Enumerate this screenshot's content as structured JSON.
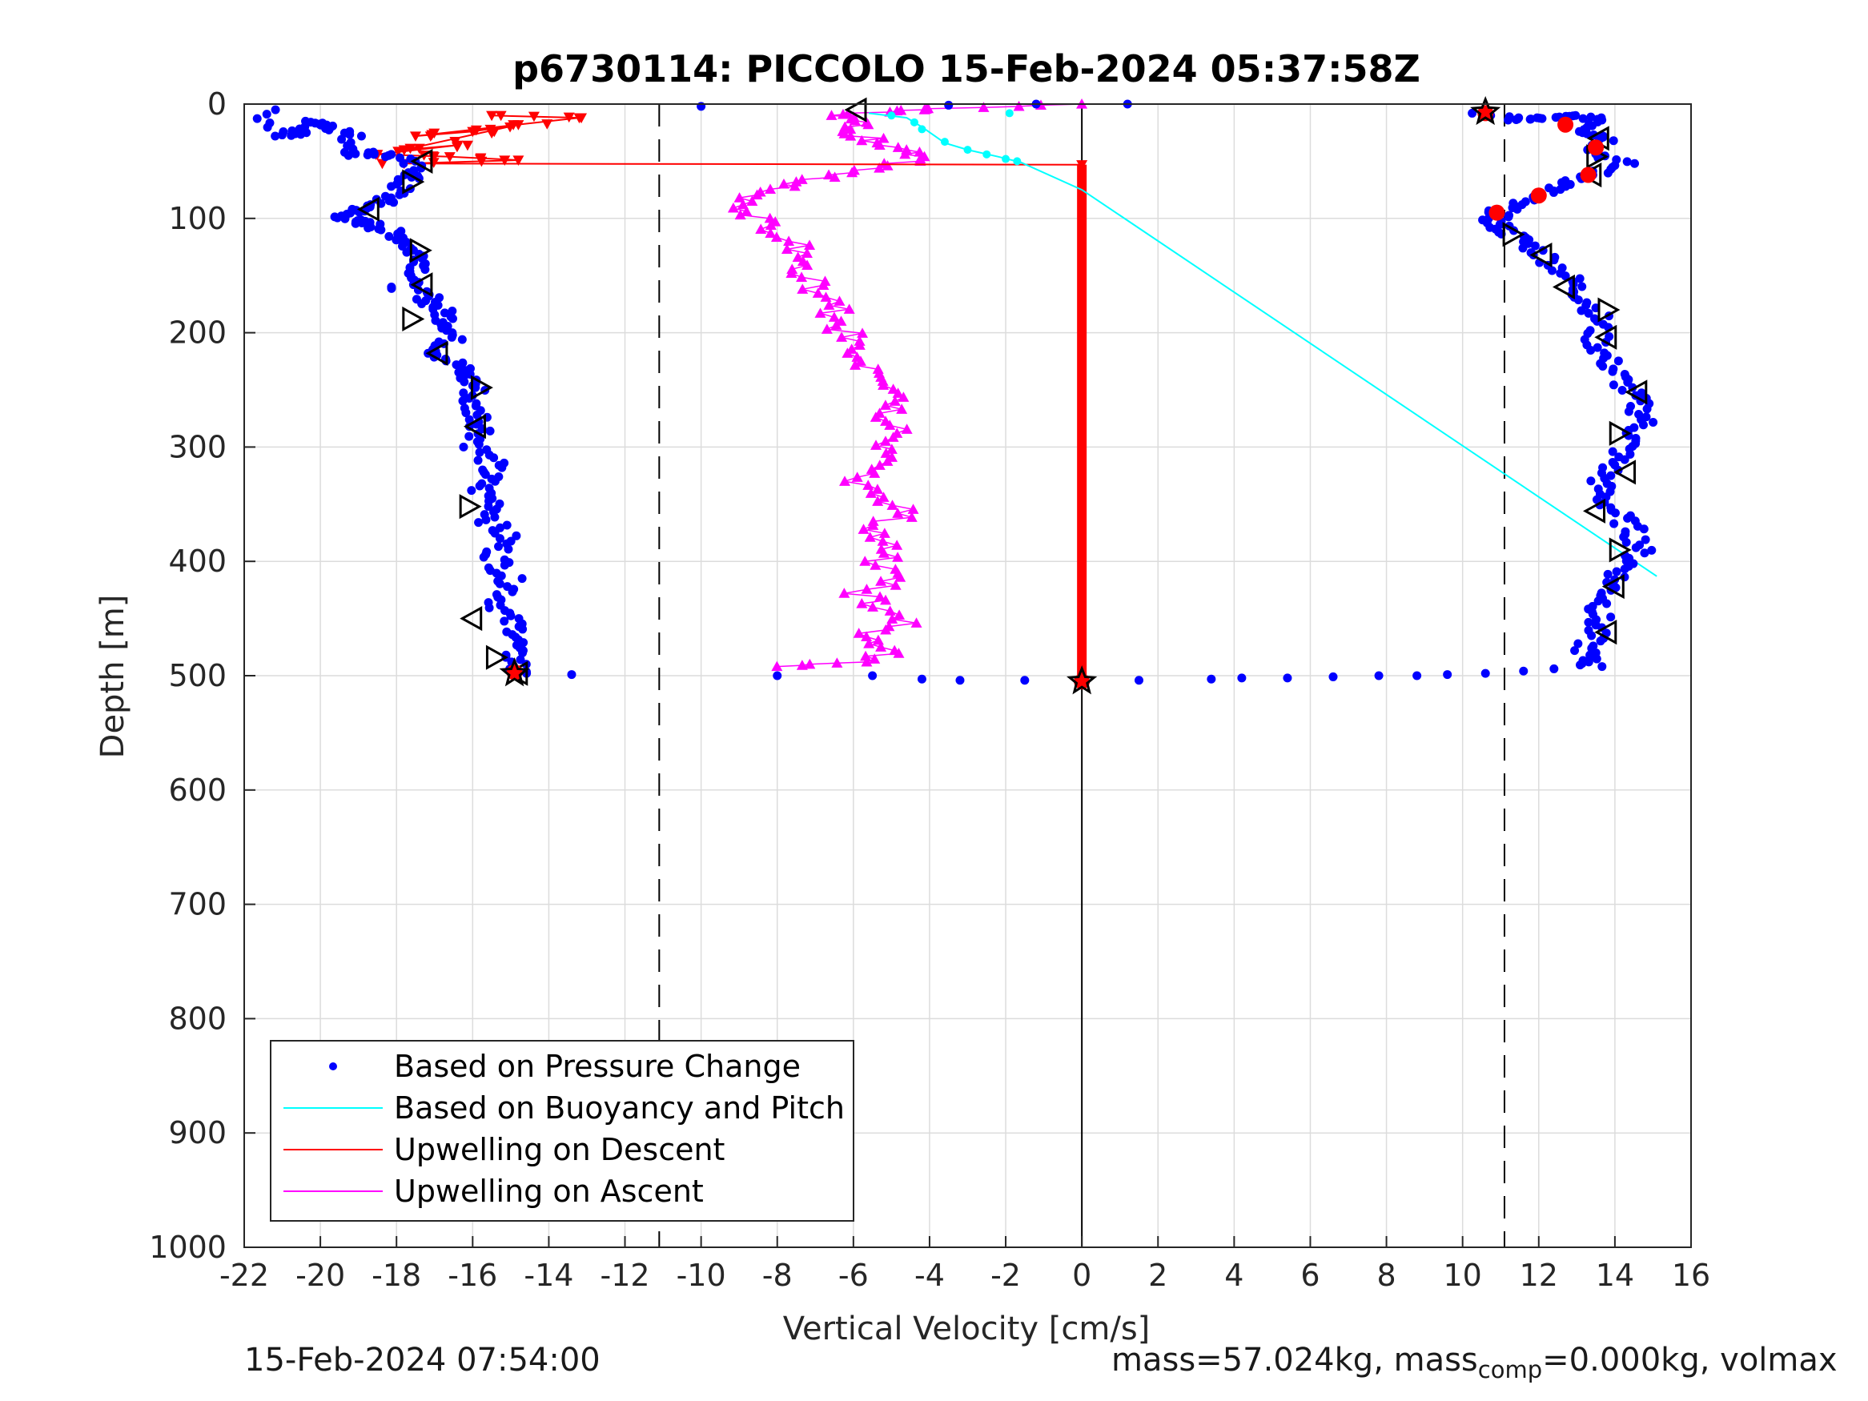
{
  "chart_data": {
    "type": "scatter",
    "title": "p6730114: PICCOLO 15-Feb-2024 05:37:58Z",
    "xlabel": "Vertical Velocity [cm/s]",
    "ylabel": "Depth [m]",
    "xlim": [
      -22,
      16
    ],
    "ylim": [
      1000,
      0
    ],
    "y_reversed": true,
    "grid": true,
    "xticks": [
      -22,
      -20,
      -18,
      -16,
      -14,
      -12,
      -10,
      -8,
      -6,
      -4,
      -2,
      0,
      2,
      4,
      6,
      8,
      10,
      12,
      14,
      16
    ],
    "yticks": [
      0,
      100,
      200,
      300,
      400,
      500,
      600,
      700,
      800,
      900,
      1000
    ],
    "reference_lines": {
      "dashed_x": [
        -11.1,
        11.1
      ],
      "solid_x": [
        0
      ]
    },
    "legend": {
      "position": "bottom-left",
      "entries": [
        "Based on Pressure Change",
        "Based on Buoyancy and Pitch",
        "Upwelling on Descent",
        "Upwelling on Ascent"
      ]
    },
    "colors": {
      "pressure": "#0000ff",
      "buoyancy": "#00ffff",
      "descent": "#ff0000",
      "ascent": "#ff00ff"
    },
    "series": [
      {
        "name": "Based on Pressure Change",
        "style": "dots",
        "segments": [
          {
            "part": "descent",
            "points": [
              [
                -21.5,
                5
              ],
              [
                -21,
                28
              ],
              [
                -20.6,
                25
              ],
              [
                -20.1,
                15
              ],
              [
                -19.6,
                20
              ],
              [
                -19.2,
                28
              ],
              [
                -19,
                45
              ],
              [
                -18.5,
                42
              ],
              [
                -17.9,
                48
              ],
              [
                -17.4,
                60
              ],
              [
                -17.8,
                66
              ],
              [
                -18.0,
                78
              ],
              [
                -18.4,
                86
              ],
              [
                -18.9,
                92
              ],
              [
                -19.4,
                97
              ],
              [
                -19.2,
                102
              ],
              [
                -18.7,
                105
              ],
              [
                -18.3,
                110
              ],
              [
                -17.8,
                117
              ],
              [
                -17.6,
                128
              ],
              [
                -17.2,
                138
              ],
              [
                -17.4,
                148
              ],
              [
                -17.9,
                160
              ],
              [
                -17.2,
                168
              ],
              [
                -17.0,
                176
              ],
              [
                -16.7,
                186
              ],
              [
                -16.5,
                196
              ],
              [
                -16.6,
                208
              ],
              [
                -16.9,
                218
              ],
              [
                -16.4,
                228
              ],
              [
                -16.2,
                238
              ],
              [
                -15.9,
                248
              ],
              [
                -16.1,
                262
              ],
              [
                -15.8,
                274
              ],
              [
                -15.7,
                286
              ],
              [
                -15.9,
                300
              ],
              [
                -15.5,
                314
              ],
              [
                -15.6,
                326
              ],
              [
                -15.8,
                338
              ],
              [
                -15.3,
                352
              ],
              [
                -15.5,
                366
              ],
              [
                -15.1,
                380
              ],
              [
                -15.4,
                394
              ],
              [
                -15.2,
                408
              ],
              [
                -14.9,
                422
              ],
              [
                -15.3,
                436
              ],
              [
                -15.1,
                450
              ],
              [
                -14.7,
                464
              ],
              [
                -15.0,
                478
              ],
              [
                -14.8,
                490
              ],
              [
                -14.9,
                498
              ]
            ]
          },
          {
            "part": "ascent",
            "points": [
              [
                10.6,
                8
              ],
              [
                11.4,
                14
              ],
              [
                12.1,
                12
              ],
              [
                12.9,
                10
              ],
              [
                13.7,
                14
              ],
              [
                13.3,
                24
              ],
              [
                13.9,
                30
              ],
              [
                13.5,
                42
              ],
              [
                14.2,
                52
              ],
              [
                13.4,
                62
              ],
              [
                12.6,
                72
              ],
              [
                11.9,
                80
              ],
              [
                11.3,
                88
              ],
              [
                10.9,
                96
              ],
              [
                10.8,
                104
              ],
              [
                11.2,
                112
              ],
              [
                11.7,
                122
              ],
              [
                12.2,
                134
              ],
              [
                12.7,
                148
              ],
              [
                13.0,
                162
              ],
              [
                13.4,
                176
              ],
              [
                13.6,
                190
              ],
              [
                13.5,
                206
              ],
              [
                13.7,
                220
              ],
              [
                14.0,
                234
              ],
              [
                14.3,
                248
              ],
              [
                14.6,
                262
              ],
              [
                14.8,
                276
              ],
              [
                14.5,
                290
              ],
              [
                14.2,
                304
              ],
              [
                13.9,
                318
              ],
              [
                13.6,
                332
              ],
              [
                13.7,
                346
              ],
              [
                14.1,
                360
              ],
              [
                14.5,
                374
              ],
              [
                14.7,
                388
              ],
              [
                14.4,
                402
              ],
              [
                14.0,
                416
              ],
              [
                13.8,
                430
              ],
              [
                13.6,
                444
              ],
              [
                13.5,
                458
              ],
              [
                13.3,
                472
              ],
              [
                13.2,
                484
              ],
              [
                13.4,
                492
              ]
            ]
          },
          {
            "part": "surface",
            "points": [
              [
                -13.4,
                499
              ],
              [
                -8.0,
                500
              ],
              [
                -5.5,
                500
              ],
              [
                -4.2,
                503
              ],
              [
                -3.2,
                504
              ],
              [
                -1.5,
                504
              ],
              [
                1.5,
                504
              ],
              [
                3.4,
                503
              ],
              [
                4.2,
                502
              ],
              [
                5.4,
                502
              ],
              [
                6.6,
                501
              ],
              [
                7.8,
                500
              ],
              [
                8.8,
                500
              ],
              [
                9.6,
                499
              ],
              [
                10.6,
                498
              ],
              [
                11.6,
                496
              ],
              [
                12.4,
                494
              ],
              [
                -10.0,
                2
              ],
              [
                -3.5,
                1
              ],
              [
                -1.2,
                0
              ],
              [
                1.2,
                0
              ]
            ]
          }
        ]
      },
      {
        "name": "Based on Buoyancy and Pitch",
        "style": "line",
        "points": [
          [
            -5.6,
            8
          ],
          [
            -4.6,
            12
          ],
          [
            -4.2,
            20
          ],
          [
            -3.6,
            34
          ],
          [
            -3.0,
            40
          ],
          [
            -2.2,
            46
          ],
          [
            -1.6,
            51
          ],
          [
            0,
            75
          ],
          [
            15.1,
            413
          ]
        ],
        "markers": [
          [
            -5.0,
            10
          ],
          [
            -4.4,
            16
          ],
          [
            -4.2,
            22
          ],
          [
            -3.6,
            33
          ],
          [
            -3.0,
            40
          ],
          [
            -2.5,
            44
          ],
          [
            -2.0,
            48
          ],
          [
            -1.7,
            50
          ],
          [
            -1.9,
            8
          ]
        ]
      },
      {
        "name": "Upwelling on Descent",
        "style": "line-triangle-down",
        "points": [
          [
            -15.5,
            10
          ],
          [
            -13.2,
            12
          ],
          [
            -17.5,
            28
          ],
          [
            -16.0,
            24
          ],
          [
            -14.8,
            18
          ],
          [
            -17.8,
            40
          ],
          [
            -16.4,
            36
          ],
          [
            -18.5,
            44
          ],
          [
            -16.6,
            46
          ],
          [
            -14.8,
            49
          ],
          [
            -17.8,
            52
          ],
          [
            0,
            53
          ]
        ],
        "bar": {
          "x": 0,
          "from": 53,
          "to": 500
        }
      },
      {
        "name": "Upwelling on Ascent",
        "style": "line-triangle-up",
        "points": [
          [
            -8.0,
            492
          ],
          [
            -5.6,
            488
          ],
          [
            -5.0,
            478
          ],
          [
            -5.8,
            466
          ],
          [
            -4.5,
            454
          ],
          [
            -5.2,
            440
          ],
          [
            -5.9,
            428
          ],
          [
            -4.7,
            414
          ],
          [
            -5.4,
            400
          ],
          [
            -4.9,
            386
          ],
          [
            -5.6,
            372
          ],
          [
            -4.6,
            358
          ],
          [
            -5.3,
            344
          ],
          [
            -5.9,
            330
          ],
          [
            -4.9,
            316
          ],
          [
            -5.4,
            302
          ],
          [
            -4.8,
            288
          ],
          [
            -5.2,
            274
          ],
          [
            -4.7,
            260
          ],
          [
            -5.6,
            246
          ],
          [
            -5.4,
            232
          ],
          [
            -5.9,
            218
          ],
          [
            -6.1,
            204
          ],
          [
            -6.4,
            190
          ],
          [
            -6.6,
            176
          ],
          [
            -7.0,
            162
          ],
          [
            -7.2,
            148
          ],
          [
            -7.6,
            134
          ],
          [
            -7.4,
            120
          ],
          [
            -8.2,
            106
          ],
          [
            -8.8,
            94
          ],
          [
            -8.6,
            82
          ],
          [
            -7.8,
            72
          ],
          [
            -6.6,
            64
          ],
          [
            -5.3,
            56
          ],
          [
            -4.2,
            48
          ],
          [
            -4.8,
            40
          ],
          [
            -5.4,
            32
          ],
          [
            -6.0,
            24
          ],
          [
            -5.6,
            16
          ],
          [
            -6.6,
            10
          ],
          [
            -5.0,
            6
          ],
          [
            -4.0,
            4
          ],
          [
            0,
            0
          ]
        ]
      }
    ],
    "special_markers": {
      "open_triangles_descent": [
        [
          -17.3,
          50
        ],
        [
          -17.6,
          68
        ],
        [
          -18.7,
          92
        ],
        [
          -17.4,
          128
        ],
        [
          -17.3,
          158
        ],
        [
          -17.6,
          188
        ],
        [
          -16.9,
          218
        ],
        [
          -15.8,
          248
        ],
        [
          -15.9,
          282
        ],
        [
          -16.1,
          352
        ],
        [
          -16.0,
          450
        ],
        [
          -15.4,
          484
        ],
        [
          -14.8,
          498
        ]
      ],
      "open_triangles_ascent": [
        [
          -5.9,
          5
        ],
        [
          13.5,
          46
        ],
        [
          13.6,
          30
        ],
        [
          13.4,
          62
        ],
        [
          11.3,
          114
        ],
        [
          12.1,
          132
        ],
        [
          12.7,
          160
        ],
        [
          13.8,
          180
        ],
        [
          13.8,
          204
        ],
        [
          14.6,
          252
        ],
        [
          14.1,
          288
        ],
        [
          14.3,
          322
        ],
        [
          13.5,
          356
        ],
        [
          14.1,
          390
        ],
        [
          14.0,
          422
        ],
        [
          13.8,
          462
        ]
      ],
      "red_filled_markers": [
        [
          10.6,
          8
        ],
        [
          12.7,
          18
        ],
        [
          13.5,
          38
        ],
        [
          13.3,
          62
        ],
        [
          12.0,
          80
        ],
        [
          10.9,
          95
        ],
        [
          0,
          505
        ],
        [
          -14.9,
          497
        ]
      ],
      "stars": [
        [
          10.6,
          7
        ],
        [
          0,
          505
        ],
        [
          -14.9,
          498
        ]
      ]
    }
  },
  "footer": {
    "left": "15-Feb-2024 07:54:00",
    "right_prefix": "mass=57.024kg, mass",
    "right_sub": "comp",
    "right_suffix": "=0.000kg, volmax"
  }
}
